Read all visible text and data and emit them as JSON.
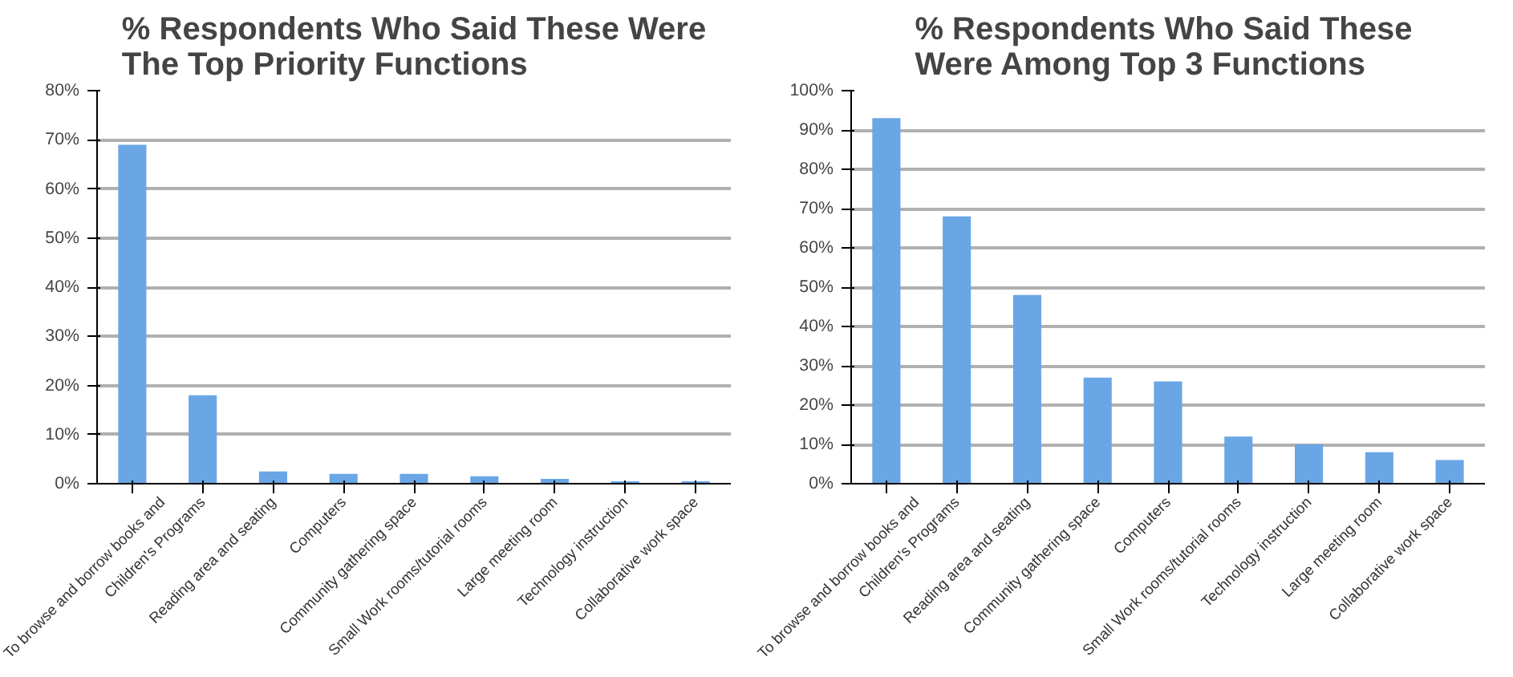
{
  "chart_data": [
    {
      "type": "bar",
      "title": "% Respondents Who Said These Were\nThe Top Priority Functions",
      "categories": [
        "To browse and borrow books and",
        "Children's Programs",
        "Reading area and seating",
        "Computers",
        "Community gathering space",
        "Small Work rooms/tutorial rooms",
        "Large meeting room",
        "Technology instruction",
        "Collaborative work space"
      ],
      "values": [
        69,
        18,
        2.5,
        2,
        2,
        1.5,
        1,
        0.5,
        0.5
      ],
      "color": "#6aa6e6",
      "ylim": [
        0,
        80
      ],
      "yticks": [
        {
          "value": 0,
          "label": "0%"
        },
        {
          "value": 10,
          "label": "10%"
        },
        {
          "value": 20,
          "label": "20%"
        },
        {
          "value": 30,
          "label": "30%"
        },
        {
          "value": 40,
          "label": "40%"
        },
        {
          "value": 50,
          "label": "50%"
        },
        {
          "value": 60,
          "label": "60%"
        },
        {
          "value": 70,
          "label": "70%"
        },
        {
          "value": 80,
          "label": "80%"
        }
      ],
      "grid": "y"
    },
    {
      "type": "bar",
      "title": "% Respondents  Who Said These\nWere Among Top 3 Functions",
      "categories": [
        "To browse and borrow books and",
        "Children's Programs",
        "Reading area and seating",
        "Community gathering space",
        "Computers",
        "Small Work rooms/tutorial rooms",
        "Technology instruction",
        "Large meeting room",
        "Collaborative work space"
      ],
      "values": [
        93,
        68,
        48,
        27,
        26,
        12,
        10,
        8,
        6
      ],
      "color": "#6aa6e6",
      "ylim": [
        0,
        100
      ],
      "yticks": [
        {
          "value": 0,
          "label": "0%"
        },
        {
          "value": 10,
          "label": "10%"
        },
        {
          "value": 20,
          "label": "20%"
        },
        {
          "value": 30,
          "label": "30%"
        },
        {
          "value": 40,
          "label": "40%"
        },
        {
          "value": 50,
          "label": "50%"
        },
        {
          "value": 60,
          "label": "60%"
        },
        {
          "value": 70,
          "label": "70%"
        },
        {
          "value": 80,
          "label": "80%"
        },
        {
          "value": 90,
          "label": "90%"
        },
        {
          "value": 100,
          "label": "100%"
        }
      ],
      "grid": "y"
    }
  ]
}
